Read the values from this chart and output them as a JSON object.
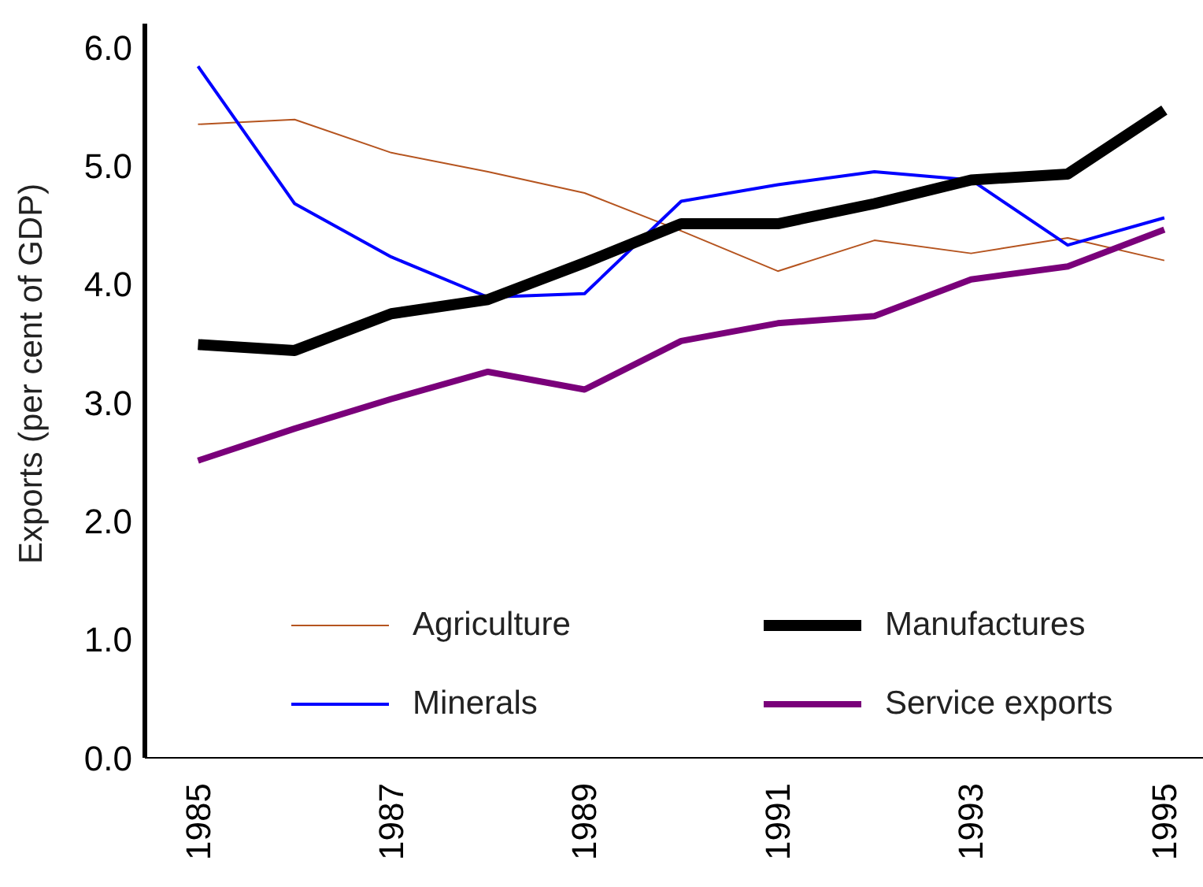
{
  "chart_data": {
    "type": "line",
    "ylabel": "Exports (per cent of GDP)",
    "x": [
      1985,
      1986,
      1987,
      1988,
      1989,
      1990,
      1991,
      1992,
      1993,
      1994,
      1995
    ],
    "xlim": [
      1984.45,
      1995.4
    ],
    "xticks": [
      1985,
      1987,
      1989,
      1991,
      1993,
      1995
    ],
    "ylim": [
      0,
      6.2
    ],
    "yticks": [
      {
        "value": 0,
        "label": "0.0"
      },
      {
        "value": 1,
        "label": "1.0"
      },
      {
        "value": 2,
        "label": "2.0"
      },
      {
        "value": 3,
        "label": "3.0"
      },
      {
        "value": 4,
        "label": "4.0"
      },
      {
        "value": 5,
        "label": "5.0"
      },
      {
        "value": 6,
        "label": "6.0"
      }
    ],
    "grid": false,
    "legend": "bottom",
    "marker": "none",
    "line_style": "solid",
    "series": [
      {
        "name": "Agriculture",
        "color": "#b5541f",
        "values": [
          5.35,
          5.39,
          5.11,
          4.95,
          4.77,
          4.45,
          4.11,
          4.37,
          4.26,
          4.39,
          4.2
        ]
      },
      {
        "name": "Minerals",
        "color": "#0000ff",
        "values": [
          5.84,
          4.68,
          4.23,
          3.89,
          3.92,
          4.7,
          4.84,
          4.95,
          4.88,
          4.33,
          4.56
        ]
      },
      {
        "name": "Manufactures",
        "color": "#000000",
        "values": [
          3.49,
          3.44,
          3.75,
          3.87,
          4.18,
          4.51,
          4.51,
          4.68,
          4.88,
          4.93,
          5.47
        ]
      },
      {
        "name": "Service exports",
        "color": "#7a007a",
        "values": [
          2.51,
          2.78,
          3.03,
          3.26,
          3.11,
          3.52,
          3.67,
          3.73,
          4.04,
          4.15,
          4.46
        ]
      }
    ]
  }
}
